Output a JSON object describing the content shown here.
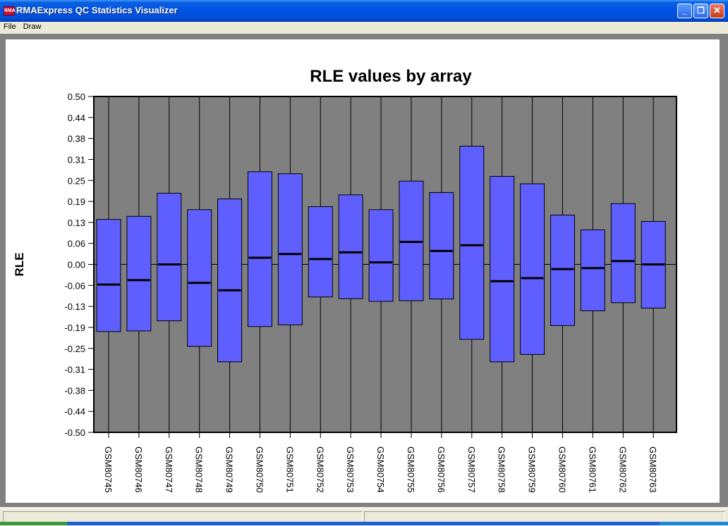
{
  "window": {
    "title": "RMAExpress QC Statistics Visualizer",
    "icon": "rma-app-icon",
    "controls": {
      "minimize": "_",
      "maximize": "❐",
      "close": "✕"
    }
  },
  "menu": {
    "items": [
      "File",
      "Draw"
    ]
  },
  "colors": {
    "title_bar": "#0054e3",
    "plot_background": "#808080",
    "box_fill": "#5f5fff",
    "median": "#000000"
  },
  "chart_data": {
    "type": "boxplot",
    "title": "RLE values by array",
    "ylabel": "RLE",
    "xlabel": "",
    "ylim": [
      -0.5,
      0.5
    ],
    "yticks": [
      "0.50",
      "0.44",
      "0.38",
      "0.31",
      "0.25",
      "0.19",
      "0.13",
      "0.06",
      "0.00",
      "-0.06",
      "-0.13",
      "-0.19",
      "-0.25",
      "-0.31",
      "-0.38",
      "-0.44",
      "-0.50"
    ],
    "zero_line": true,
    "vertical_grid": true,
    "categories": [
      "GSM80745",
      "GSM80746",
      "GSM80747",
      "GSM80748",
      "GSM80749",
      "GSM80750",
      "GSM80751",
      "GSM80752",
      "GSM80753",
      "GSM80754",
      "GSM80755",
      "GSM80756",
      "GSM80757",
      "GSM80758",
      "GSM80759",
      "GSM80760",
      "GSM80761",
      "GSM80762",
      "GSM80763"
    ],
    "q1": [
      -0.2,
      -0.198,
      -0.168,
      -0.244,
      -0.29,
      -0.185,
      -0.18,
      -0.097,
      -0.102,
      -0.11,
      -0.108,
      -0.103,
      -0.223,
      -0.29,
      -0.268,
      -0.182,
      -0.138,
      -0.114,
      -0.13
    ],
    "median": [
      -0.06,
      -0.047,
      0.0,
      -0.055,
      -0.077,
      0.02,
      0.031,
      0.016,
      0.036,
      0.006,
      0.067,
      0.04,
      0.057,
      -0.05,
      -0.041,
      -0.014,
      -0.011,
      0.01,
      0.0
    ],
    "q3": [
      0.134,
      0.143,
      0.212,
      0.163,
      0.195,
      0.276,
      0.27,
      0.172,
      0.207,
      0.163,
      0.248,
      0.214,
      0.352,
      0.262,
      0.24,
      0.147,
      0.103,
      0.181,
      0.128
    ]
  }
}
